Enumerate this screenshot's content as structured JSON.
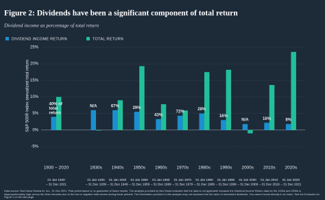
{
  "chart_data": {
    "type": "bar",
    "title": "Figure 2: Dividends have been a significant component of total return",
    "subtitle": "Dividend income as percentage of total return",
    "y_label": "S&P 500® Index annualized total return",
    "categories": [
      "1930 – 2020",
      "1930s",
      "1940s",
      "1950s",
      "1960s",
      "1970s",
      "1980s",
      "1990s",
      "2000s",
      "2010s",
      "2020s"
    ],
    "category_periods": [
      "01 Jan 1930 – 31 Dec 2021",
      "01 Jan 1930 – 31 Dec 1939",
      "01 Jan 1940 – 31 Dec 1949",
      "01 Jan 1950 – 31 Dec 1959",
      "01 Jan 1960 – 31 Dec 1969",
      "01 Jan 1970 – 31 Dec 1979",
      "01 Jan 1980 – 31 Dec 1989",
      "01 Jan 1990 – 31 Dec 1999",
      "01 Jan 2000 – 31 Dec 2009",
      "01 Jan 2010 – 31 Dec 2019",
      "01 Jan 2020 – 31 Dec 2021"
    ],
    "series": [
      {
        "name": "DIVIDEND INCOME RETURN",
        "color": "#1b8fd0",
        "values": [
          4.0,
          6.0,
          6.0,
          5.5,
          3.3,
          4.3,
          5.0,
          3.0,
          1.8,
          2.2,
          1.8
        ]
      },
      {
        "name": "TOTAL RETURN",
        "color": "#22c09a",
        "values": [
          10.0,
          0.0,
          9.0,
          19.3,
          7.8,
          5.9,
          17.5,
          18.2,
          -1.0,
          13.6,
          23.6
        ]
      }
    ],
    "dividend_share_labels": [
      "40% of total return",
      "N/A",
      "67%",
      "29%",
      "43%",
      "72%",
      "28%",
      "16%",
      "N/A",
      "16%",
      "8%"
    ],
    "ylim": [
      -5,
      25
    ],
    "yticks": [
      {
        "value": 25,
        "label": "25%"
      },
      {
        "value": 20,
        "label": "20%"
      },
      {
        "value": 15,
        "label": "15%"
      },
      {
        "value": 10,
        "label": "10%"
      },
      {
        "value": 5,
        "label": "5%"
      },
      {
        "value": 0,
        "label": "0%"
      },
      {
        "value": -5,
        "label": "-5%"
      }
    ],
    "grid": true,
    "footnote": "Data source: Ned Davis Research, Inc., 31 Dec 2021. Past performance is no guarantee of future results. The analysis provided by Ned Davis indicates that the data is not applicable because the Dividend Income Return data for the 1930s and 2000s is disproportionately high versus the other decades due to the low or negative total returns during these periods. The information provided in this analysis may not represent the full value of reinvested dividends. You cannot invest directly in an index. See the Endnotes for Figure 2 on the last page."
  }
}
